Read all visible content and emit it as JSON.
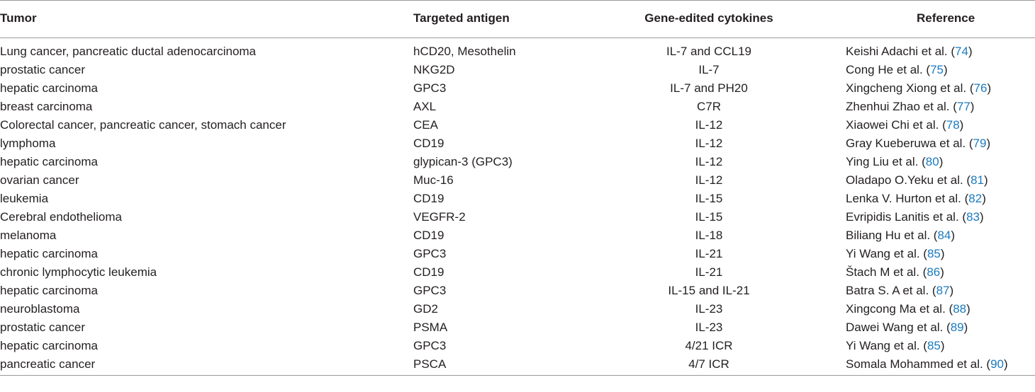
{
  "table": {
    "headers": {
      "tumor": "Tumor",
      "antigen": "Targeted antigen",
      "cytokines": "Gene-edited cytokines",
      "reference": "Reference"
    },
    "rows": [
      {
        "tumor": "Lung cancer, pancreatic ductal adenocarcinoma",
        "antigen": "hCD20, Mesothelin",
        "cytokines": "IL-7 and CCL19",
        "ref_author": "Keishi Adachi et al. (",
        "ref_num": "74",
        "ref_close": ")"
      },
      {
        "tumor": "prostatic cancer",
        "antigen": "NKG2D",
        "cytokines": "IL-7",
        "ref_author": "Cong He et al. (",
        "ref_num": "75",
        "ref_close": ")"
      },
      {
        "tumor": "hepatic carcinoma",
        "antigen": "GPC3",
        "cytokines": "IL-7 and PH20",
        "ref_author": "Xingcheng Xiong et al. (",
        "ref_num": "76",
        "ref_close": ")"
      },
      {
        "tumor": "breast carcinoma",
        "antigen": "AXL",
        "cytokines": "C7R",
        "ref_author": "Zhenhui Zhao et al. (",
        "ref_num": "77",
        "ref_close": ")"
      },
      {
        "tumor": "Colorectal cancer, pancreatic cancer, stomach cancer",
        "antigen": "CEA",
        "cytokines": "IL-12",
        "ref_author": "Xiaowei Chi et al. (",
        "ref_num": "78",
        "ref_close": ")"
      },
      {
        "tumor": "lymphoma",
        "antigen": "CD19",
        "cytokines": "IL-12",
        "ref_author": "Gray Kueberuwa et al. (",
        "ref_num": "79",
        "ref_close": ")"
      },
      {
        "tumor": "hepatic carcinoma",
        "antigen": "glypican-3 (GPC3)",
        "cytokines": "IL-12",
        "ref_author": "Ying Liu et al. (",
        "ref_num": "80",
        "ref_close": ")"
      },
      {
        "tumor": "ovarian cancer",
        "antigen": "Muc-16",
        "cytokines": "IL-12",
        "ref_author": "Oladapo O.Yeku et al. (",
        "ref_num": "81",
        "ref_close": ")"
      },
      {
        "tumor": "leukemia",
        "antigen": "CD19",
        "cytokines": "IL-15",
        "ref_author": "Lenka V. Hurton et al. (",
        "ref_num": "82",
        "ref_close": ")"
      },
      {
        "tumor": "Cerebral endothelioma",
        "antigen": "VEGFR-2",
        "cytokines": "IL-15",
        "ref_author": "Evripidis Lanitis et al. (",
        "ref_num": "83",
        "ref_close": ")"
      },
      {
        "tumor": "melanoma",
        "antigen": "CD19",
        "cytokines": "IL-18",
        "ref_author": "Biliang Hu et al. (",
        "ref_num": "84",
        "ref_close": ")"
      },
      {
        "tumor": "hepatic carcinoma",
        "antigen": "GPC3",
        "cytokines": "IL-21",
        "ref_author": "Yi Wang et al. (",
        "ref_num": "85",
        "ref_close": ")"
      },
      {
        "tumor": "chronic lymphocytic leukemia",
        "antigen": "CD19",
        "cytokines": "IL-21",
        "ref_author": "Štach M et al. (",
        "ref_num": "86",
        "ref_close": ")"
      },
      {
        "tumor": "hepatic carcinoma",
        "antigen": "GPC3",
        "cytokines": "IL-15 and IL-21",
        "ref_author": "Batra S. A et al. (",
        "ref_num": "87",
        "ref_close": ")"
      },
      {
        "tumor": "neuroblastoma",
        "antigen": "GD2",
        "cytokines": "IL-23",
        "ref_author": "Xingcong Ma et al. (",
        "ref_num": "88",
        "ref_close": ")"
      },
      {
        "tumor": "prostatic cancer",
        "antigen": "PSMA",
        "cytokines": "IL-23",
        "ref_author": "Dawei Wang et al. (",
        "ref_num": "89",
        "ref_close": ")"
      },
      {
        "tumor": "hepatic carcinoma",
        "antigen": "GPC3",
        "cytokines": "4/21 ICR",
        "ref_author": "Yi Wang et al. (",
        "ref_num": "85",
        "ref_close": ")"
      },
      {
        "tumor": "pancreatic cancer",
        "antigen": "PSCA",
        "cytokines": "4/7 ICR",
        "ref_author": "Somala Mohammed et al. (",
        "ref_num": "90",
        "ref_close": ")"
      }
    ]
  },
  "colors": {
    "text": "#231f20",
    "citation_link": "#1a7abf",
    "rule": "#9a9a9a"
  }
}
